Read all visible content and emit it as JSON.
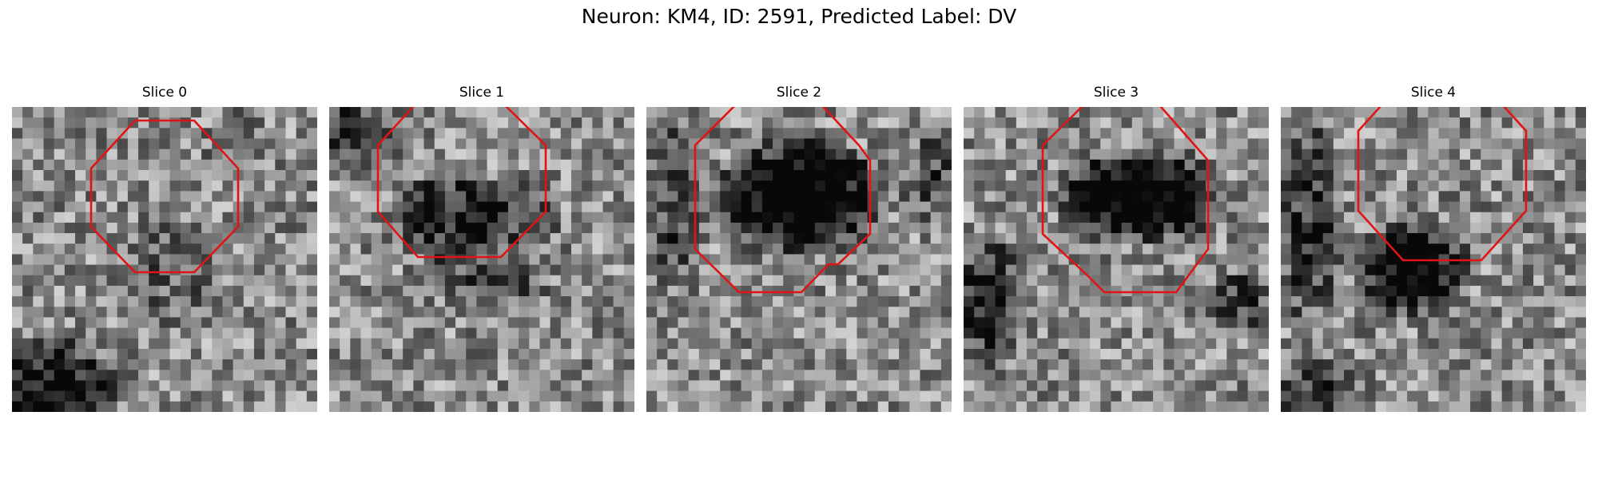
{
  "figure": {
    "title": "Neuron: KM4, ID: 2591, Predicted Label: DV",
    "outline_color": "#e01414"
  },
  "panels": [
    {
      "title": "Slice 0"
    },
    {
      "title": "Slice 1"
    },
    {
      "title": "Slice 2"
    },
    {
      "title": "Slice 3"
    },
    {
      "title": "Slice 4"
    }
  ]
}
